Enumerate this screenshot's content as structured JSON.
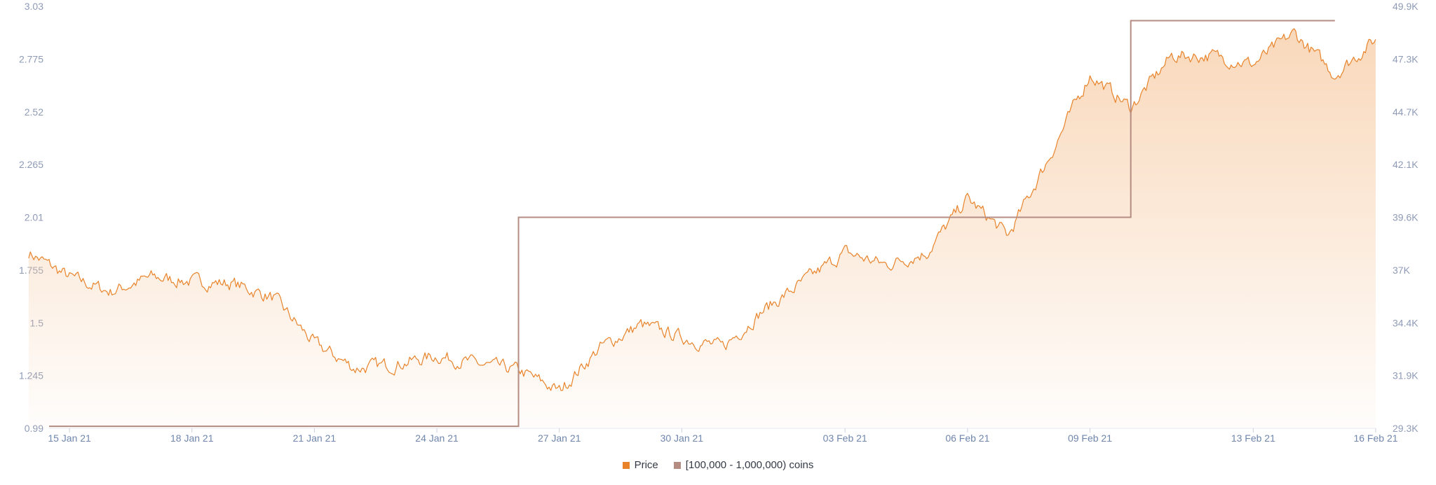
{
  "chart_data": {
    "type": "line",
    "title": "",
    "xlabel": "",
    "ylabel": "",
    "x_ticks": [
      "15 Jan 21",
      "18 Jan 21",
      "21 Jan 21",
      "24 Jan 21",
      "27 Jan 21",
      "30 Jan 21",
      "03 Feb 21",
      "06 Feb 21",
      "09 Feb 21",
      "13 Feb 21",
      "16 Feb 21"
    ],
    "left_axis": {
      "ylim": [
        0.99,
        3.03
      ],
      "ticks": [
        "0.99",
        "1.245",
        "1.5",
        "1.755",
        "2.01",
        "2.265",
        "2.52",
        "2.775",
        "3.03"
      ]
    },
    "right_axis": {
      "ylim": [
        29300,
        49900
      ],
      "ticks": [
        "29.3K",
        "31.9K",
        "34.4K",
        "37K",
        "39.6K",
        "42.1K",
        "44.7K",
        "47.3K",
        "49.9K"
      ]
    },
    "grid": false,
    "legend_position": "bottom-center",
    "series": [
      {
        "name": "Price",
        "axis": "left",
        "style": "area",
        "color": "#e8832a",
        "fill_color": "#f6c9a0",
        "x": [
          "2021-01-14",
          "2021-01-15",
          "2021-01-16",
          "2021-01-17",
          "2021-01-18",
          "2021-01-19",
          "2021-01-20",
          "2021-01-21",
          "2021-01-22",
          "2021-01-23",
          "2021-01-24",
          "2021-01-25",
          "2021-01-26",
          "2021-01-27",
          "2021-01-28",
          "2021-01-29",
          "2021-01-30",
          "2021-01-31",
          "2021-02-01",
          "2021-02-02",
          "2021-02-03",
          "2021-02-04",
          "2021-02-05",
          "2021-02-06",
          "2021-02-07",
          "2021-02-08",
          "2021-02-09",
          "2021-02-10",
          "2021-02-11",
          "2021-02-12",
          "2021-02-13",
          "2021-02-14",
          "2021-02-15",
          "2021-02-16"
        ],
        "values": [
          1.84,
          1.72,
          1.65,
          1.72,
          1.7,
          1.69,
          1.62,
          1.4,
          1.28,
          1.3,
          1.34,
          1.3,
          1.27,
          1.17,
          1.38,
          1.49,
          1.43,
          1.38,
          1.56,
          1.7,
          1.84,
          1.78,
          1.84,
          2.1,
          1.92,
          2.3,
          2.7,
          2.54,
          2.79,
          2.79,
          2.75,
          2.9,
          2.7,
          2.87
        ]
      },
      {
        "name": "[100,000  - 1,000,000) coins",
        "axis": "right",
        "style": "step",
        "color": "#b48c82",
        "x": [
          "2021-01-14",
          "2021-01-26",
          "2021-02-10",
          "2021-02-15"
        ],
        "values": [
          29400,
          39600,
          49200,
          49200
        ]
      }
    ]
  },
  "legend": {
    "price_label": "Price",
    "price_color": "#e8832a",
    "holders_label": "[100,000  - 1,000,000) coins",
    "holders_color": "#b48c82"
  }
}
